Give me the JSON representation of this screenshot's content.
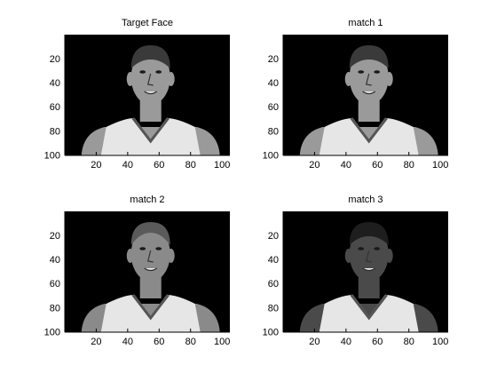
{
  "figure": {
    "panels": [
      {
        "title": "Target Face",
        "yticks": [
          "20",
          "40",
          "60",
          "80",
          "100"
        ],
        "xticks": [
          "20",
          "40",
          "60",
          "80",
          "100"
        ],
        "image": {
          "subject": "grayscale portrait of a basketball player in a white jersey on black background",
          "skin_tone": "#9a9a9a",
          "hair_tone": "#3a3a3a",
          "hair_style": "short"
        }
      },
      {
        "title": "match 1",
        "yticks": [
          "20",
          "40",
          "60",
          "80",
          "100"
        ],
        "xticks": [
          "20",
          "40",
          "60",
          "80",
          "100"
        ],
        "image": {
          "subject": "grayscale portrait of a basketball player in a white jersey on black background",
          "skin_tone": "#9a9a9a",
          "hair_tone": "#3a3a3a",
          "hair_style": "short"
        }
      },
      {
        "title": "match 2",
        "yticks": [
          "20",
          "40",
          "60",
          "80",
          "100"
        ],
        "xticks": [
          "20",
          "40",
          "60",
          "80",
          "100"
        ],
        "image": {
          "subject": "grayscale portrait of a basketball player in a white jersey on black background",
          "skin_tone": "#8a8a8a",
          "hair_tone": "#5a5a5a",
          "hair_style": "buzz"
        }
      },
      {
        "title": "match 3",
        "yticks": [
          "20",
          "40",
          "60",
          "80",
          "100"
        ],
        "xticks": [
          "20",
          "40",
          "60",
          "80",
          "100"
        ],
        "image": {
          "subject": "grayscale portrait of a basketball player in a white jersey on black background",
          "skin_tone": "#4a4a4a",
          "hair_tone": "#1e1e1e",
          "hair_style": "short"
        }
      }
    ]
  }
}
